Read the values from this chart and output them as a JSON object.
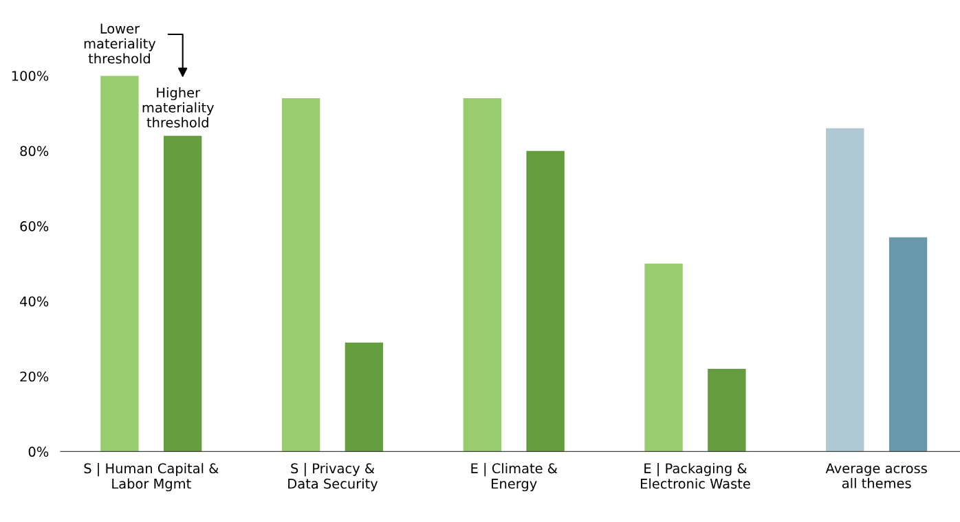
{
  "chart_data": {
    "type": "bar",
    "categories": [
      "S | Human Capital &\nLabor Mgmt",
      "S | Privacy &\nData Security",
      "E | Climate &\nEnergy",
      "E | Packaging &\nElectronic Waste",
      "Average across\nall themes"
    ],
    "series": [
      {
        "name": "Lower\nmateriality\nthreshold",
        "colors": [
          "#99cc6f",
          "#99cc6f",
          "#99cc6f",
          "#99cc6f",
          "#afc8d4"
        ],
        "values": [
          100,
          94,
          94,
          50,
          86
        ]
      },
      {
        "name": "Higher\nmateriality\nthreshold",
        "colors": [
          "#659c3f",
          "#659c3f",
          "#659c3f",
          "#659c3f",
          "#6a99ae"
        ],
        "values": [
          84,
          29,
          80,
          22,
          57
        ]
      }
    ],
    "ylim": [
      0,
      100
    ],
    "yticks": [
      {
        "value": 0,
        "label": "0%"
      },
      {
        "value": 20,
        "label": "20%"
      },
      {
        "value": 40,
        "label": "40%"
      },
      {
        "value": 60,
        "label": "60%"
      },
      {
        "value": 80,
        "label": "80%"
      },
      {
        "value": 100,
        "label": "100%"
      }
    ],
    "grid": false,
    "legend": false
  }
}
